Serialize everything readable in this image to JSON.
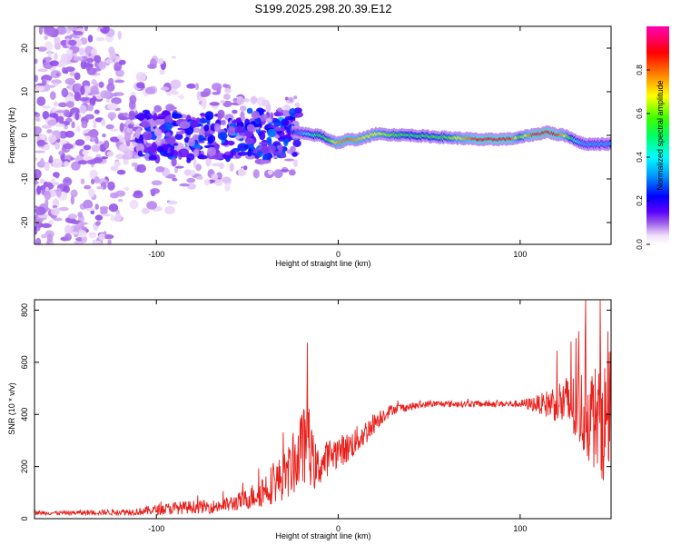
{
  "title": "S199.2025.298.20.39.E12",
  "chart_data": [
    {
      "type": "heatmap",
      "title": "S199.2025.298.20.39.E12",
      "xlabel": "Height of straight line (km)",
      "ylabel": "Frequency (Hz)",
      "xlim": [
        -167,
        150
      ],
      "ylim": [
        -25,
        25
      ],
      "xticks": [
        -100,
        0,
        100
      ],
      "yticks": [
        -20,
        -10,
        0,
        10,
        20
      ],
      "xtick_labels": [
        "-100",
        "0",
        "100"
      ],
      "ytick_labels": [
        "-20",
        "-10",
        "0",
        "10",
        "20"
      ],
      "colorbar": {
        "label": "Normalized spectral amplitude",
        "range": [
          0,
          1
        ],
        "ticks": [
          0.0,
          0.2,
          0.4,
          0.6,
          0.8
        ],
        "tick_labels": [
          "0.0",
          "0.2",
          "0.4",
          "0.6",
          "0.8"
        ],
        "colors": [
          "#ffffff",
          "#e8d0f8",
          "#9a5ae8",
          "#5a00ff",
          "#0000ff",
          "#00a0ff",
          "#00ffff",
          "#00ff60",
          "#40ff00",
          "#ffff00",
          "#ff8000",
          "#ff0000",
          "#ff0060",
          "#ff00b0"
        ]
      },
      "description_of_content": "Broadband scattered energy below about -30 km, narrow band near 0 Hz from -25 km to 150 km",
      "ridge": {
        "x": [
          -25,
          -20,
          -15,
          -10,
          -5,
          0,
          5,
          10,
          15,
          20,
          40,
          60,
          80,
          95,
          100,
          105,
          110,
          115,
          120,
          125,
          130,
          135,
          140,
          145,
          150
        ],
        "freq": [
          0.8,
          0.5,
          0.1,
          0.0,
          -1.0,
          -1.8,
          -1.0,
          -1.0,
          -0.5,
          0.3,
          0.0,
          -0.5,
          -1.0,
          -0.8,
          -0.5,
          0.0,
          0.3,
          0.8,
          0.2,
          0.0,
          -1.0,
          -2.0,
          -2.0,
          -2.0,
          -2.0
        ],
        "amplitude": [
          0.3,
          0.4,
          0.5,
          0.55,
          0.6,
          0.75,
          0.8,
          0.75,
          0.7,
          0.7,
          0.55,
          0.6,
          0.9,
          0.85,
          0.6,
          0.75,
          0.95,
          0.9,
          0.85,
          0.7,
          0.5,
          0.4,
          0.4,
          0.4,
          0.4
        ]
      }
    },
    {
      "type": "line",
      "xlabel": "Height of straight line (km)",
      "ylabel": "SNR (10 * v/v)",
      "xlim": [
        -167,
        150
      ],
      "ylim": [
        0,
        840
      ],
      "xticks": [
        -100,
        0,
        100
      ],
      "yticks": [
        0,
        200,
        400,
        600,
        800
      ],
      "xtick_labels": [
        "-100",
        "0",
        "100"
      ],
      "ytick_labels": [
        "0",
        "200",
        "400",
        "600",
        "800"
      ],
      "series": [
        {
          "name": "SNR",
          "color": "#e8201c",
          "x": [
            -167,
            -150,
            -130,
            -110,
            -100,
            -90,
            -80,
            -70,
            -60,
            -50,
            -45,
            -40,
            -35,
            -30,
            -25,
            -20,
            -17,
            -15,
            -12,
            -10,
            -5,
            0,
            5,
            10,
            15,
            20,
            25,
            30,
            40,
            50,
            60,
            70,
            80,
            90,
            100,
            105,
            110,
            115,
            120,
            125,
            130,
            135,
            140,
            145,
            150
          ],
          "mean": [
            22,
            22,
            24,
            27,
            34,
            40,
            45,
            45,
            55,
            75,
            95,
            115,
            140,
            160,
            200,
            260,
            300,
            240,
            190,
            200,
            240,
            260,
            270,
            300,
            330,
            370,
            400,
            420,
            430,
            440,
            440,
            440,
            440,
            440,
            440,
            440,
            440,
            440,
            450,
            440,
            420,
            410,
            390,
            380,
            370
          ],
          "noise": [
            8,
            8,
            10,
            14,
            20,
            25,
            25,
            25,
            30,
            40,
            55,
            70,
            80,
            90,
            110,
            150,
            140,
            120,
            90,
            70,
            70,
            60,
            60,
            55,
            50,
            40,
            30,
            20,
            15,
            12,
            12,
            12,
            12,
            12,
            15,
            25,
            35,
            55,
            80,
            110,
            140,
            170,
            200,
            230,
            250
          ],
          "spikes": [
            {
              "x": -17,
              "y": 675
            },
            {
              "x": -19,
              "y": 420
            },
            {
              "x": -16,
              "y": 420
            },
            {
              "x": 128,
              "y": 680
            },
            {
              "x": 132,
              "y": 590
            },
            {
              "x": 136,
              "y": 840
            },
            {
              "x": 144,
              "y": 840
            },
            {
              "x": 149,
              "y": 640
            }
          ]
        }
      ]
    }
  ]
}
